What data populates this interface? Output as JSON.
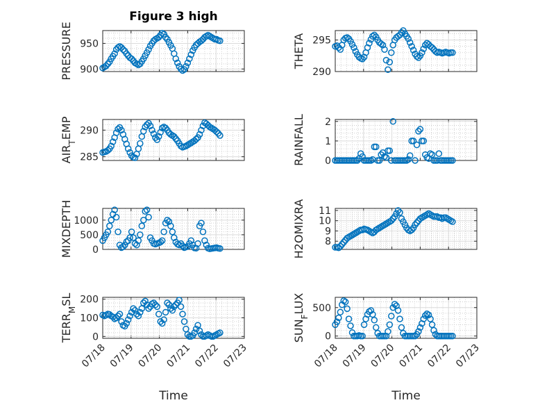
{
  "figure": {
    "title": "Figure 3 high",
    "marker_color": "#0072BD"
  },
  "chart_data": [
    {
      "type": "scatter",
      "title": "Figure 3 high",
      "ylabel": "PRESSURE",
      "ylabel_sub": null,
      "xlim": [
        0,
        5
      ],
      "ylim": [
        895,
        975
      ],
      "yticks": [
        900,
        950
      ],
      "xticklabels": false,
      "x": [
        0.0,
        0.06,
        0.12,
        0.18,
        0.24,
        0.3,
        0.36,
        0.42,
        0.48,
        0.54,
        0.6,
        0.66,
        0.72,
        0.78,
        0.84,
        0.9,
        0.96,
        1.02,
        1.08,
        1.14,
        1.2,
        1.26,
        1.32,
        1.38,
        1.44,
        1.5,
        1.56,
        1.62,
        1.68,
        1.74,
        1.8,
        1.86,
        1.92,
        1.98,
        2.04,
        2.1,
        2.16,
        2.22,
        2.28,
        2.34,
        2.4,
        2.46,
        2.52,
        2.58,
        2.64,
        2.7,
        2.76,
        2.82,
        2.88,
        2.94,
        3.0,
        3.06,
        3.12,
        3.18,
        3.24,
        3.3,
        3.36,
        3.42,
        3.48,
        3.54,
        3.6,
        3.66,
        3.72,
        3.78,
        3.84,
        3.9,
        3.96,
        4.02,
        4.08,
        4.14
      ],
      "y": [
        902,
        904,
        906,
        910,
        914,
        920,
        925,
        930,
        938,
        942,
        944,
        942,
        938,
        935,
        930,
        926,
        922,
        920,
        916,
        912,
        910,
        908,
        910,
        915,
        920,
        926,
        932,
        938,
        945,
        950,
        955,
        958,
        960,
        962,
        966,
        970,
        968,
        962,
        958,
        952,
        946,
        940,
        930,
        920,
        912,
        905,
        900,
        897,
        899,
        905,
        912,
        920,
        928,
        936,
        942,
        947,
        950,
        953,
        955,
        958,
        962,
        964,
        966,
        964,
        962,
        960,
        958,
        958,
        956,
        955
      ]
    },
    {
      "type": "scatter",
      "ylabel": "THETA",
      "ylabel_sub": null,
      "xlim": [
        0,
        5
      ],
      "ylim": [
        290,
        296.5
      ],
      "yticks": [
        290,
        295
      ],
      "xticklabels": false,
      "x": [
        0.0,
        0.06,
        0.12,
        0.18,
        0.24,
        0.3,
        0.36,
        0.42,
        0.48,
        0.54,
        0.6,
        0.66,
        0.72,
        0.78,
        0.84,
        0.9,
        0.96,
        1.02,
        1.08,
        1.14,
        1.2,
        1.26,
        1.32,
        1.38,
        1.44,
        1.5,
        1.56,
        1.62,
        1.68,
        1.74,
        1.8,
        1.86,
        1.92,
        1.98,
        2.04,
        2.1,
        2.16,
        2.22,
        2.28,
        2.34,
        2.4,
        2.46,
        2.52,
        2.58,
        2.64,
        2.7,
        2.76,
        2.82,
        2.88,
        2.94,
        3.0,
        3.06,
        3.12,
        3.18,
        3.24,
        3.3,
        3.36,
        3.42,
        3.48,
        3.54,
        3.6,
        3.66,
        3.72,
        3.78,
        3.84,
        3.9,
        3.96,
        4.02,
        4.08,
        4.14
      ],
      "y": [
        294.0,
        294.1,
        293.8,
        293.5,
        294.2,
        295.0,
        295.3,
        295.4,
        295.2,
        294.8,
        294.3,
        293.8,
        293.2,
        292.7,
        292.3,
        292.1,
        292.0,
        292.3,
        293.0,
        293.8,
        294.5,
        295.1,
        295.6,
        295.8,
        295.5,
        295.0,
        294.6,
        294.4,
        294.2,
        293.5,
        291.8,
        290.3,
        291.5,
        293.0,
        294.2,
        295.0,
        295.4,
        295.6,
        295.8,
        296.2,
        296.5,
        296.0,
        295.6,
        295.2,
        294.6,
        294.0,
        293.4,
        292.8,
        292.4,
        292.2,
        292.5,
        293.0,
        293.6,
        294.2,
        294.5,
        294.3,
        294.0,
        293.8,
        293.5,
        293.2,
        293.0,
        293.1,
        293.0,
        292.9,
        293.0,
        293.1,
        293.0,
        292.9,
        293.0,
        293.0
      ]
    },
    {
      "type": "scatter",
      "ylabel": "AIR",
      "ylabel_sub": "T",
      "ylabel_suffix": "EMP",
      "xlim": [
        0,
        5
      ],
      "ylim": [
        284.3,
        292
      ],
      "yticks": [
        285,
        290
      ],
      "xticklabels": false,
      "x": [
        0.0,
        0.06,
        0.12,
        0.18,
        0.24,
        0.3,
        0.36,
        0.42,
        0.48,
        0.54,
        0.6,
        0.66,
        0.72,
        0.78,
        0.84,
        0.9,
        0.96,
        1.02,
        1.08,
        1.14,
        1.2,
        1.26,
        1.32,
        1.38,
        1.44,
        1.5,
        1.56,
        1.62,
        1.68,
        1.74,
        1.8,
        1.86,
        1.92,
        1.98,
        2.04,
        2.1,
        2.16,
        2.22,
        2.28,
        2.34,
        2.4,
        2.46,
        2.52,
        2.58,
        2.64,
        2.7,
        2.76,
        2.82,
        2.88,
        2.94,
        3.0,
        3.06,
        3.12,
        3.18,
        3.24,
        3.3,
        3.36,
        3.42,
        3.48,
        3.54,
        3.6,
        3.66,
        3.72,
        3.78,
        3.84,
        3.9,
        3.96,
        4.02,
        4.08,
        4.14
      ],
      "y": [
        285.8,
        285.9,
        286.0,
        286.2,
        286.5,
        287.0,
        287.8,
        288.6,
        289.5,
        290.2,
        290.5,
        290.0,
        289.2,
        288.3,
        287.4,
        286.5,
        285.8,
        285.2,
        284.9,
        284.8,
        285.5,
        286.5,
        287.5,
        288.8,
        289.8,
        290.6,
        291.0,
        291.3,
        290.8,
        290.0,
        289.3,
        288.6,
        288.2,
        288.8,
        289.6,
        290.4,
        290.6,
        290.4,
        290.0,
        289.5,
        289.2,
        289.0,
        288.8,
        288.4,
        288.0,
        287.5,
        287.0,
        286.8,
        286.9,
        287.0,
        287.2,
        287.4,
        287.6,
        287.8,
        288.0,
        288.3,
        288.6,
        289.2,
        290.0,
        290.8,
        291.4,
        291.2,
        290.9,
        290.6,
        290.4,
        290.2,
        290.0,
        289.7,
        289.4,
        289.0
      ]
    },
    {
      "type": "scatter",
      "ylabel": "RAINFALL",
      "ylabel_sub": null,
      "xlim": [
        0,
        5
      ],
      "ylim": [
        0,
        2.1
      ],
      "yticks": [
        0,
        1,
        2
      ],
      "xticklabels": false,
      "x": [
        0.0,
        0.06,
        0.12,
        0.18,
        0.24,
        0.3,
        0.36,
        0.42,
        0.48,
        0.54,
        0.6,
        0.66,
        0.72,
        0.78,
        0.84,
        0.9,
        0.96,
        1.02,
        1.08,
        1.14,
        1.2,
        1.26,
        1.32,
        1.38,
        1.44,
        1.5,
        1.56,
        1.62,
        1.68,
        1.74,
        1.8,
        1.86,
        1.92,
        1.98,
        2.04,
        2.1,
        2.16,
        2.22,
        2.28,
        2.34,
        2.4,
        2.46,
        2.52,
        2.58,
        2.64,
        2.7,
        2.76,
        2.82,
        2.88,
        2.94,
        3.0,
        3.06,
        3.12,
        3.18,
        3.24,
        3.3,
        3.36,
        3.42,
        3.48,
        3.54,
        3.6,
        3.66,
        3.72,
        3.78,
        3.84,
        3.9,
        3.96,
        4.02,
        4.08,
        4.14
      ],
      "y": [
        0,
        0,
        0,
        0,
        0,
        0,
        0,
        0,
        0,
        0,
        0,
        0,
        0,
        0,
        0.1,
        0.35,
        0.2,
        0,
        0,
        0,
        0,
        0,
        0.05,
        0.7,
        0.7,
        0,
        0,
        0.3,
        0.4,
        0.2,
        0.15,
        0.5,
        0.5,
        0,
        2.0,
        0,
        0,
        0,
        0,
        0,
        0,
        0,
        0,
        0.05,
        0.25,
        1.0,
        1.0,
        0,
        0.8,
        1.5,
        1.6,
        1.0,
        1.0,
        0.3,
        0.15,
        0.1,
        0.35,
        0.3,
        0,
        0,
        0,
        0.35,
        0,
        0,
        0,
        0,
        0,
        0,
        0,
        0
      ]
    },
    {
      "type": "scatter",
      "ylabel": "MIXDEPTH",
      "ylabel_sub": null,
      "xlim": [
        0,
        5
      ],
      "ylim": [
        0,
        1400
      ],
      "yticks": [
        0,
        500,
        1000
      ],
      "xticklabels": false,
      "x": [
        0.0,
        0.06,
        0.12,
        0.18,
        0.24,
        0.3,
        0.36,
        0.42,
        0.48,
        0.54,
        0.6,
        0.66,
        0.72,
        0.78,
        0.84,
        0.9,
        0.96,
        1.02,
        1.08,
        1.14,
        1.2,
        1.26,
        1.32,
        1.38,
        1.44,
        1.5,
        1.56,
        1.62,
        1.68,
        1.74,
        1.8,
        1.86,
        1.92,
        1.98,
        2.04,
        2.1,
        2.16,
        2.22,
        2.28,
        2.34,
        2.4,
        2.46,
        2.52,
        2.58,
        2.64,
        2.7,
        2.76,
        2.82,
        2.88,
        2.94,
        3.0,
        3.06,
        3.12,
        3.18,
        3.24,
        3.3,
        3.36,
        3.42,
        3.48,
        3.54,
        3.6,
        3.66,
        3.72,
        3.78,
        3.84,
        3.9,
        3.96,
        4.02,
        4.08,
        4.14
      ],
      "y": [
        300,
        400,
        500,
        600,
        800,
        1000,
        1200,
        1350,
        1100,
        600,
        150,
        60,
        90,
        150,
        260,
        300,
        400,
        600,
        400,
        200,
        150,
        300,
        500,
        800,
        1000,
        1300,
        1350,
        1100,
        400,
        300,
        200,
        180,
        200,
        220,
        250,
        300,
        600,
        900,
        1000,
        950,
        800,
        600,
        400,
        250,
        180,
        150,
        200,
        120,
        60,
        80,
        100,
        200,
        300,
        150,
        50,
        40,
        200,
        800,
        900,
        600,
        300,
        150,
        40,
        20,
        30,
        40,
        50,
        60,
        40,
        30
      ]
    },
    {
      "type": "scatter",
      "ylabel": "H2OMIXRA",
      "ylabel_sub": null,
      "xlim": [
        0,
        5
      ],
      "ylim": [
        7.2,
        11.2
      ],
      "yticks": [
        8,
        9,
        10,
        11
      ],
      "xticklabels": false,
      "x": [
        0.0,
        0.06,
        0.12,
        0.18,
        0.24,
        0.3,
        0.36,
        0.42,
        0.48,
        0.54,
        0.6,
        0.66,
        0.72,
        0.78,
        0.84,
        0.9,
        0.96,
        1.02,
        1.08,
        1.14,
        1.2,
        1.26,
        1.32,
        1.38,
        1.44,
        1.5,
        1.56,
        1.62,
        1.68,
        1.74,
        1.8,
        1.86,
        1.92,
        1.98,
        2.04,
        2.1,
        2.16,
        2.22,
        2.28,
        2.34,
        2.4,
        2.46,
        2.52,
        2.58,
        2.64,
        2.7,
        2.76,
        2.82,
        2.88,
        2.94,
        3.0,
        3.06,
        3.12,
        3.18,
        3.24,
        3.3,
        3.36,
        3.42,
        3.48,
        3.54,
        3.6,
        3.66,
        3.72,
        3.78,
        3.84,
        3.9,
        3.96,
        4.02,
        4.08,
        4.14
      ],
      "y": [
        7.4,
        7.4,
        7.35,
        7.5,
        7.7,
        7.9,
        8.1,
        8.3,
        8.4,
        8.5,
        8.6,
        8.7,
        8.8,
        8.9,
        9.0,
        9.1,
        9.1,
        9.2,
        9.15,
        9.1,
        9.0,
        8.9,
        8.8,
        8.9,
        9.1,
        9.2,
        9.3,
        9.4,
        9.5,
        9.6,
        9.7,
        9.8,
        9.9,
        10.0,
        10.2,
        10.4,
        10.7,
        11.0,
        10.8,
        10.2,
        9.9,
        9.6,
        9.3,
        9.1,
        9.0,
        9.1,
        9.3,
        9.6,
        9.8,
        10.0,
        10.2,
        10.3,
        10.4,
        10.5,
        10.6,
        10.7,
        10.6,
        10.5,
        10.4,
        10.4,
        10.4,
        10.3,
        10.3,
        10.2,
        10.3,
        10.3,
        10.2,
        10.1,
        10.0,
        9.9
      ]
    },
    {
      "type": "scatter",
      "ylabel": "TERR",
      "ylabel_sub": "M",
      "ylabel_suffix": "SL",
      "xlim": [
        0,
        5
      ],
      "ylim": [
        -10,
        210
      ],
      "yticks": [
        0,
        100,
        200
      ],
      "xticklabels": true,
      "xticks": [
        0,
        1,
        2,
        3,
        4,
        5
      ],
      "xtick_labels": [
        "07/18",
        "07/19",
        "07/20",
        "07/21",
        "07/22",
        "07/23"
      ],
      "xlabel": "Time",
      "x": [
        0.0,
        0.06,
        0.12,
        0.18,
        0.24,
        0.3,
        0.36,
        0.42,
        0.48,
        0.54,
        0.6,
        0.66,
        0.72,
        0.78,
        0.84,
        0.9,
        0.96,
        1.02,
        1.08,
        1.14,
        1.2,
        1.26,
        1.32,
        1.38,
        1.44,
        1.5,
        1.56,
        1.62,
        1.68,
        1.74,
        1.8,
        1.86,
        1.92,
        1.98,
        2.04,
        2.1,
        2.16,
        2.22,
        2.28,
        2.34,
        2.4,
        2.46,
        2.52,
        2.58,
        2.64,
        2.7,
        2.76,
        2.82,
        2.88,
        2.94,
        3.0,
        3.06,
        3.12,
        3.18,
        3.24,
        3.3,
        3.36,
        3.42,
        3.48,
        3.54,
        3.6,
        3.66,
        3.72,
        3.78,
        3.84,
        3.9,
        3.96,
        4.02,
        4.08,
        4.14
      ],
      "y": [
        115,
        110,
        115,
        120,
        118,
        110,
        105,
        95,
        100,
        110,
        120,
        80,
        60,
        55,
        70,
        90,
        110,
        130,
        150,
        140,
        120,
        110,
        130,
        150,
        180,
        190,
        170,
        150,
        160,
        175,
        180,
        170,
        160,
        120,
        80,
        70,
        90,
        130,
        180,
        170,
        150,
        140,
        160,
        170,
        180,
        195,
        160,
        120,
        80,
        40,
        10,
        0,
        0,
        5,
        20,
        40,
        60,
        30,
        10,
        0,
        0,
        5,
        10,
        5,
        0,
        0,
        5,
        10,
        15,
        20
      ]
    },
    {
      "type": "scatter",
      "ylabel": "SUN",
      "ylabel_sub": "F",
      "ylabel_suffix": "LUX",
      "xlim": [
        0,
        5
      ],
      "ylim": [
        -40,
        680
      ],
      "yticks": [
        0,
        500
      ],
      "xticklabels": true,
      "xticks": [
        0,
        1,
        2,
        3,
        4,
        5
      ],
      "xtick_labels": [
        "07/18",
        "07/19",
        "07/20",
        "07/21",
        "07/22",
        "07/23"
      ],
      "xlabel": "Time",
      "x": [
        0.0,
        0.06,
        0.12,
        0.18,
        0.24,
        0.3,
        0.36,
        0.42,
        0.48,
        0.54,
        0.6,
        0.66,
        0.72,
        0.78,
        0.84,
        0.9,
        0.96,
        1.02,
        1.08,
        1.14,
        1.2,
        1.26,
        1.32,
        1.38,
        1.44,
        1.5,
        1.56,
        1.62,
        1.68,
        1.74,
        1.8,
        1.86,
        1.92,
        1.98,
        2.04,
        2.1,
        2.16,
        2.22,
        2.28,
        2.34,
        2.4,
        2.46,
        2.52,
        2.58,
        2.64,
        2.7,
        2.76,
        2.82,
        2.88,
        2.94,
        3.0,
        3.06,
        3.12,
        3.18,
        3.24,
        3.3,
        3.36,
        3.42,
        3.48,
        3.54,
        3.6,
        3.66,
        3.72,
        3.78,
        3.84,
        3.9,
        3.96,
        4.02,
        4.08,
        4.14
      ],
      "y": [
        200,
        250,
        320,
        420,
        550,
        620,
        600,
        480,
        300,
        180,
        60,
        0,
        0,
        0,
        10,
        0,
        0,
        200,
        300,
        380,
        430,
        450,
        380,
        280,
        150,
        50,
        0,
        0,
        0,
        0,
        0,
        80,
        200,
        350,
        500,
        560,
        530,
        450,
        300,
        150,
        50,
        0,
        0,
        0,
        0,
        0,
        0,
        0,
        30,
        80,
        150,
        220,
        300,
        360,
        390,
        370,
        300,
        200,
        100,
        30,
        0,
        0,
        0,
        0,
        0,
        0,
        0,
        0,
        0,
        0
      ]
    }
  ]
}
